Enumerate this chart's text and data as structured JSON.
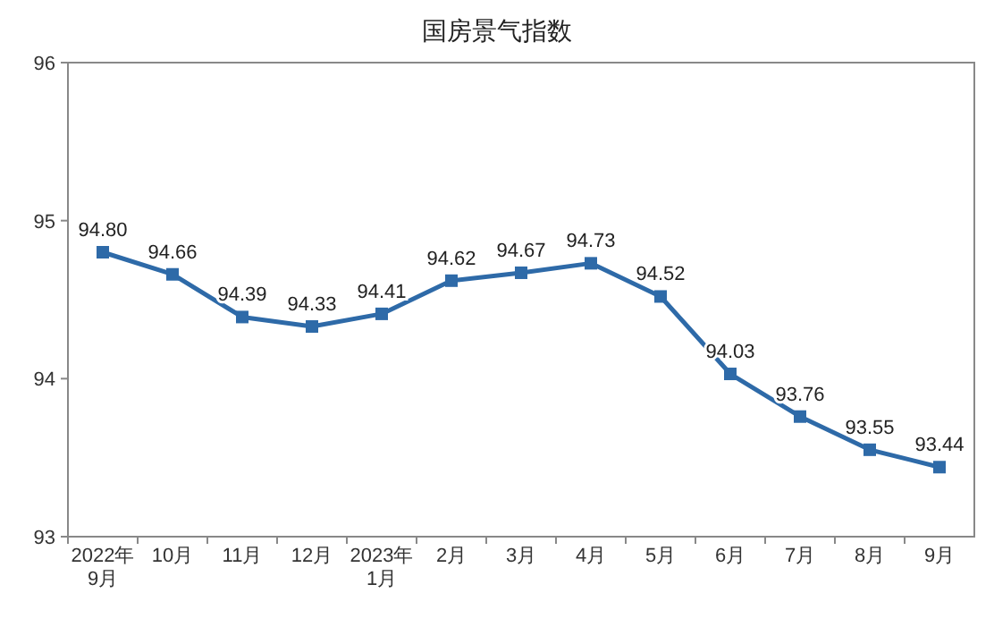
{
  "chart_data": {
    "type": "line",
    "title": "国房景气指数",
    "categories": [
      "2022年\n9月",
      "10月",
      "11月",
      "12月",
      "2023年\n1月",
      "2月",
      "3月",
      "4月",
      "5月",
      "6月",
      "7月",
      "8月",
      "9月"
    ],
    "values": [
      94.8,
      94.66,
      94.39,
      94.33,
      94.41,
      94.62,
      94.67,
      94.73,
      94.52,
      94.03,
      93.76,
      93.55,
      93.44
    ],
    "value_labels": [
      "94.80",
      "94.66",
      "94.39",
      "94.33",
      "94.41",
      "94.62",
      "94.67",
      "94.73",
      "94.52",
      "94.03",
      "93.76",
      "93.55",
      "93.44"
    ],
    "color": "#2e6aa8",
    "marker": "square",
    "ylim": [
      93,
      96
    ],
    "yticks": [
      93,
      94,
      95,
      96
    ]
  }
}
